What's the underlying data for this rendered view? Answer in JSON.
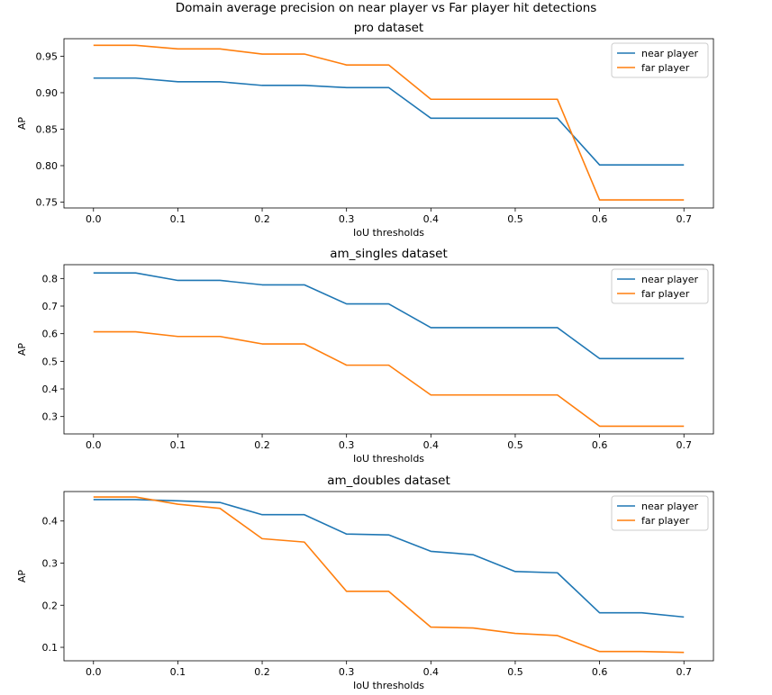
{
  "figure": {
    "suptitle": "Domain  average precision on near player vs Far player hit detections"
  },
  "chart_data": [
    {
      "type": "line",
      "title": "pro dataset",
      "xlabel": "IoU thresholds",
      "ylabel": "AP",
      "x": [
        0.0,
        0.05,
        0.1,
        0.15,
        0.2,
        0.25,
        0.3,
        0.35,
        0.4,
        0.45,
        0.5,
        0.55,
        0.6,
        0.65,
        0.7
      ],
      "xticks": [
        0.0,
        0.1,
        0.2,
        0.3,
        0.4,
        0.5,
        0.6,
        0.7
      ],
      "xtick_labels": [
        "0.0",
        "0.1",
        "0.2",
        "0.3",
        "0.4",
        "0.5",
        "0.6",
        "0.7"
      ],
      "yticks": [
        0.75,
        0.8,
        0.85,
        0.9,
        0.95
      ],
      "ytick_labels": [
        "0.75",
        "0.80",
        "0.85",
        "0.90",
        "0.95"
      ],
      "xlim": [
        -0.035,
        0.735
      ],
      "ylim": [
        0.742,
        0.974
      ],
      "grid": false,
      "legend_position": "upper-right",
      "series": [
        {
          "name": "near player",
          "color": "#1f77b4",
          "values": [
            0.92,
            0.92,
            0.915,
            0.915,
            0.91,
            0.91,
            0.907,
            0.907,
            0.865,
            0.865,
            0.865,
            0.865,
            0.801,
            0.801,
            0.801
          ]
        },
        {
          "name": "far player",
          "color": "#ff7f0e",
          "values": [
            0.965,
            0.965,
            0.96,
            0.96,
            0.953,
            0.953,
            0.938,
            0.938,
            0.891,
            0.891,
            0.891,
            0.891,
            0.753,
            0.753,
            0.753
          ]
        }
      ]
    },
    {
      "type": "line",
      "title": "am_singles dataset",
      "xlabel": "IoU thresholds",
      "ylabel": "AP",
      "x": [
        0.0,
        0.05,
        0.1,
        0.15,
        0.2,
        0.25,
        0.3,
        0.35,
        0.4,
        0.45,
        0.5,
        0.55,
        0.6,
        0.65,
        0.7
      ],
      "xticks": [
        0.0,
        0.1,
        0.2,
        0.3,
        0.4,
        0.5,
        0.6,
        0.7
      ],
      "xtick_labels": [
        "0.0",
        "0.1",
        "0.2",
        "0.3",
        "0.4",
        "0.5",
        "0.6",
        "0.7"
      ],
      "yticks": [
        0.3,
        0.4,
        0.5,
        0.6,
        0.7,
        0.8
      ],
      "ytick_labels": [
        "0.3",
        "0.4",
        "0.5",
        "0.6",
        "0.7",
        "0.8"
      ],
      "xlim": [
        -0.035,
        0.735
      ],
      "ylim": [
        0.237,
        0.85
      ],
      "grid": false,
      "legend_position": "upper-right",
      "series": [
        {
          "name": "near player",
          "color": "#1f77b4",
          "values": [
            0.82,
            0.82,
            0.793,
            0.793,
            0.777,
            0.777,
            0.708,
            0.708,
            0.622,
            0.622,
            0.622,
            0.622,
            0.51,
            0.51,
            0.51
          ]
        },
        {
          "name": "far player",
          "color": "#ff7f0e",
          "values": [
            0.607,
            0.607,
            0.59,
            0.59,
            0.563,
            0.563,
            0.486,
            0.486,
            0.378,
            0.378,
            0.378,
            0.378,
            0.265,
            0.265,
            0.265
          ]
        }
      ]
    },
    {
      "type": "line",
      "title": "am_doubles dataset",
      "xlabel": "IoU thresholds",
      "ylabel": "AP",
      "x": [
        0.0,
        0.05,
        0.1,
        0.15,
        0.2,
        0.25,
        0.3,
        0.35,
        0.4,
        0.45,
        0.5,
        0.55,
        0.6,
        0.65,
        0.7
      ],
      "xticks": [
        0.0,
        0.1,
        0.2,
        0.3,
        0.4,
        0.5,
        0.6,
        0.7
      ],
      "xtick_labels": [
        "0.0",
        "0.1",
        "0.2",
        "0.3",
        "0.4",
        "0.5",
        "0.6",
        "0.7"
      ],
      "yticks": [
        0.1,
        0.2,
        0.3,
        0.4
      ],
      "ytick_labels": [
        "0.1",
        "0.2",
        "0.3",
        "0.4"
      ],
      "xlim": [
        -0.035,
        0.735
      ],
      "ylim": [
        0.068,
        0.47
      ],
      "grid": false,
      "legend_position": "upper-right",
      "series": [
        {
          "name": "near player",
          "color": "#1f77b4",
          "values": [
            0.451,
            0.451,
            0.448,
            0.444,
            0.415,
            0.415,
            0.369,
            0.367,
            0.328,
            0.32,
            0.28,
            0.277,
            0.182,
            0.182,
            0.172
          ]
        },
        {
          "name": "far player",
          "color": "#ff7f0e",
          "values": [
            0.457,
            0.457,
            0.44,
            0.43,
            0.358,
            0.35,
            0.233,
            0.233,
            0.148,
            0.146,
            0.133,
            0.128,
            0.09,
            0.09,
            0.088
          ]
        }
      ]
    }
  ]
}
